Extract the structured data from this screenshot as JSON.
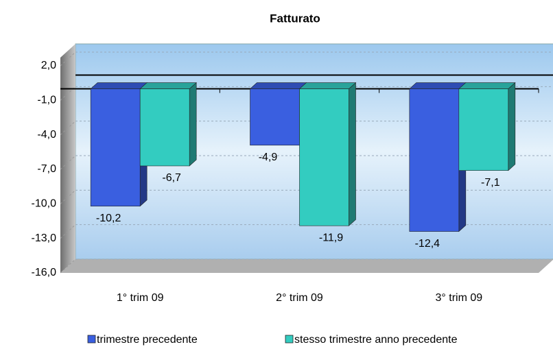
{
  "chart_data": {
    "type": "bar",
    "title": "Fatturato",
    "categories": [
      "1° trim 09",
      "2° trim 09",
      "3° trim 09"
    ],
    "series": [
      {
        "name": "trimestre precedente",
        "color": "#3a5fe0",
        "values": [
          -10.2,
          -4.9,
          -12.4
        ],
        "value_labels": [
          "-10,2",
          "-4,9",
          "-12,4"
        ]
      },
      {
        "name": "stesso trimestre anno precedente",
        "color": "#33ccc0",
        "values": [
          -6.7,
          -11.9,
          -7.1
        ],
        "value_labels": [
          "-6,7",
          "-11,9",
          "-7,1"
        ]
      }
    ],
    "ylim": [
      -16,
      2
    ],
    "yticks": [
      {
        "value": 2,
        "label": "2,0"
      },
      {
        "value": -1,
        "label": "-1,0"
      },
      {
        "value": -4,
        "label": "-4,0"
      },
      {
        "value": -7,
        "label": "-7,0"
      },
      {
        "value": -10,
        "label": "-10,0"
      },
      {
        "value": -13,
        "label": "-13,0"
      },
      {
        "value": -16,
        "label": "-16,0"
      }
    ],
    "grid": true,
    "legend": "bottom"
  }
}
